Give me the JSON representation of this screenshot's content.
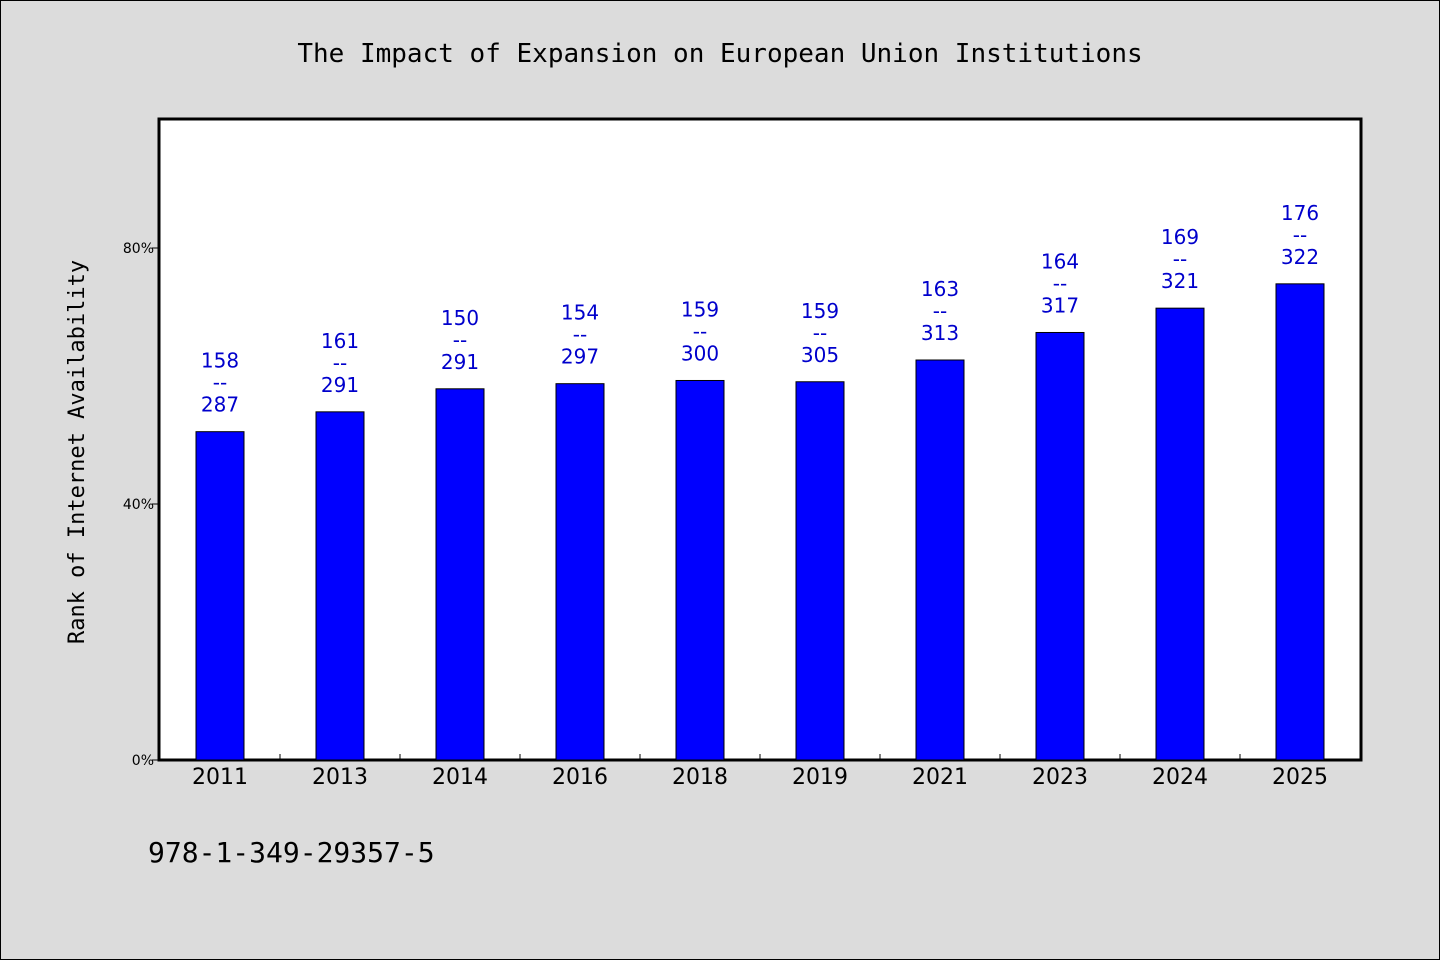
{
  "chart_data": {
    "type": "bar",
    "title": "The Impact of Expansion on European Union Institutions",
    "xlabel": "",
    "ylabel": "Rank of Internet Availability",
    "categories": [
      "2011",
      "2013",
      "2014",
      "2016",
      "2018",
      "2019",
      "2021",
      "2023",
      "2024",
      "2025"
    ],
    "values": [
      51.3,
      54.4,
      58.0,
      58.8,
      59.3,
      59.1,
      62.5,
      66.8,
      70.6,
      74.4
    ],
    "value_unit": "%",
    "data_labels": [
      {
        "top": "158",
        "sep": "--",
        "bottom": "287"
      },
      {
        "top": "161",
        "sep": "--",
        "bottom": "291"
      },
      {
        "top": "150",
        "sep": "--",
        "bottom": "291"
      },
      {
        "top": "154",
        "sep": "--",
        "bottom": "297"
      },
      {
        "top": "159",
        "sep": "--",
        "bottom": "300"
      },
      {
        "top": "159",
        "sep": "--",
        "bottom": "305"
      },
      {
        "top": "163",
        "sep": "--",
        "bottom": "313"
      },
      {
        "top": "164",
        "sep": "--",
        "bottom": "317"
      },
      {
        "top": "169",
        "sep": "--",
        "bottom": "321"
      },
      {
        "top": "176",
        "sep": "--",
        "bottom": "322"
      }
    ],
    "ylim": [
      0,
      100
    ],
    "yticks": [
      0,
      40,
      80
    ],
    "ytick_labels": [
      "0%",
      "40%",
      "80%"
    ],
    "grid": false,
    "legend": "none",
    "bar_color": "#0000ff",
    "label_color": "#0000cc"
  },
  "footer": {
    "isbn": "978-1-349-29357-5"
  },
  "colors": {
    "background": "#dcdcdc",
    "plot_background": "#ffffff",
    "bar": "#0000ff",
    "data_label": "#0000cc"
  }
}
